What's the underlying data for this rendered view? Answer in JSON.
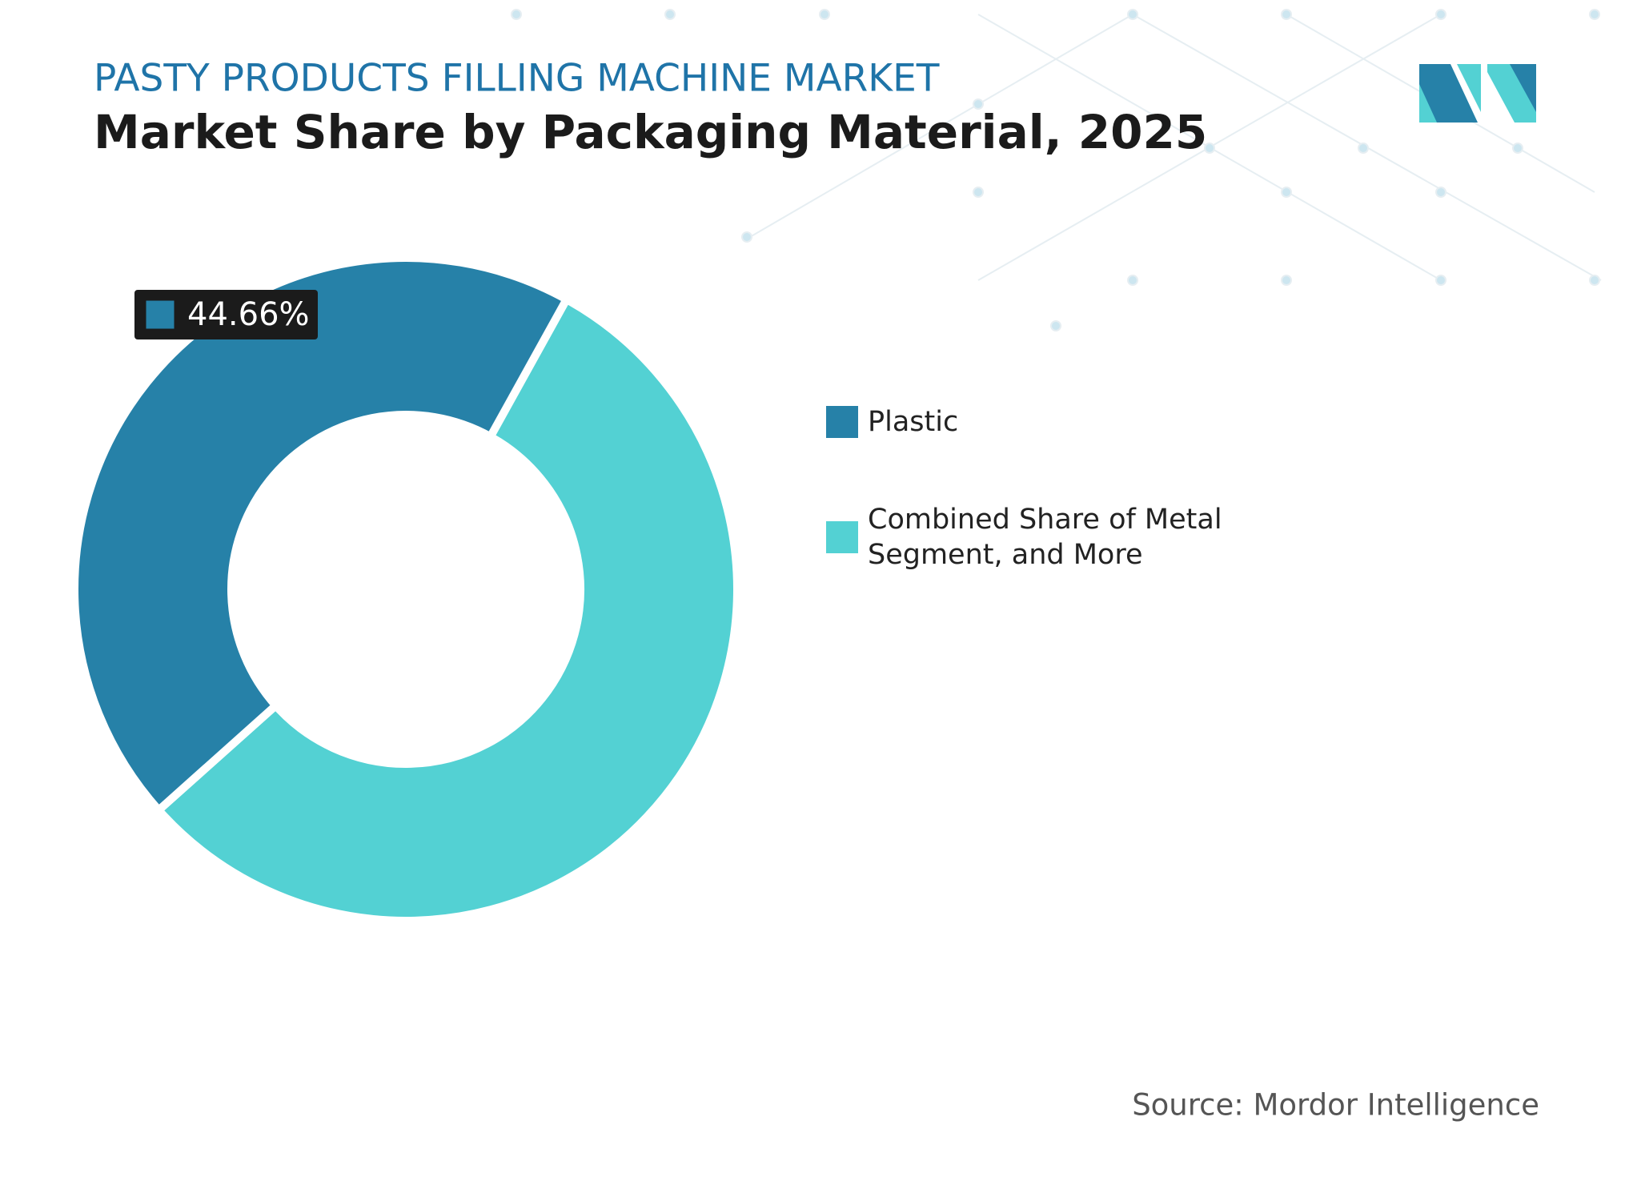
{
  "chart_data": {
    "type": "donut",
    "heading": "PASTY PRODUCTS FILLING MACHINE MARKET",
    "title": "Market Share by Packaging Material, 2025",
    "categories": [
      "Plastic",
      "Combined Share of Metal Segment, and More"
    ],
    "values": [
      44.66,
      55.34
    ],
    "value_labels": [
      "44.66%",
      null
    ],
    "colors": [
      "#2681a8",
      "#53d1d3"
    ],
    "source": "Source: Mordor Intelligence"
  }
}
